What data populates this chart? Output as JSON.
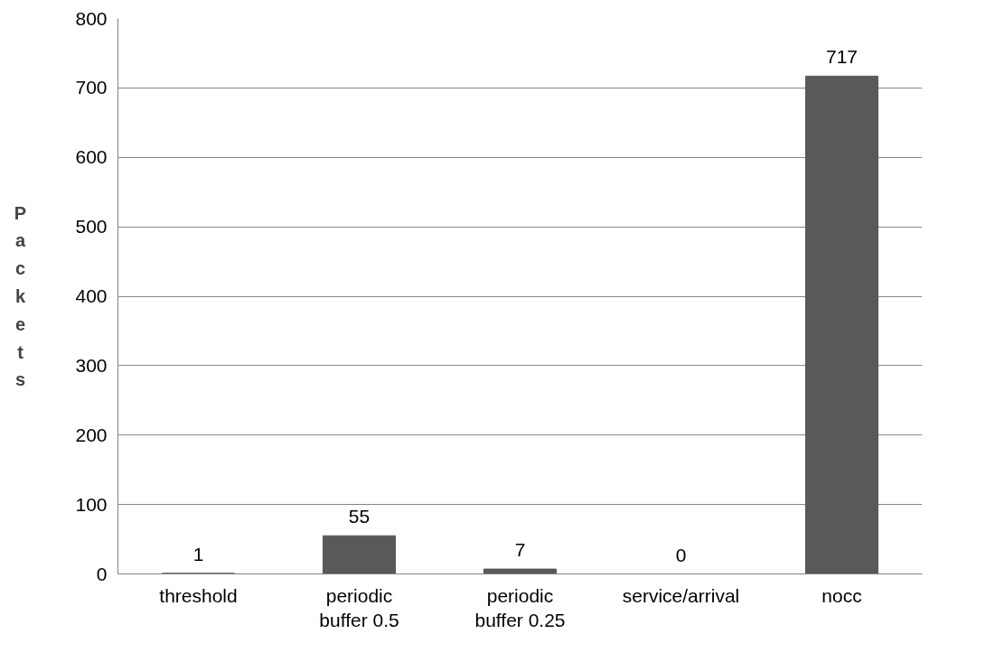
{
  "chart_data": {
    "type": "bar",
    "ylabel": "Packets",
    "categories": [
      "threshold",
      "periodic buffer 0.5",
      "periodic buffer 0.25",
      "service/arrival",
      "nocc"
    ],
    "values": [
      1,
      55,
      7,
      0,
      717
    ],
    "color": "#595959",
    "data_labels": true,
    "ylim": [
      0,
      800
    ],
    "yticks": [
      0,
      100,
      200,
      300,
      400,
      500,
      600,
      700,
      800
    ],
    "grid": "y"
  }
}
